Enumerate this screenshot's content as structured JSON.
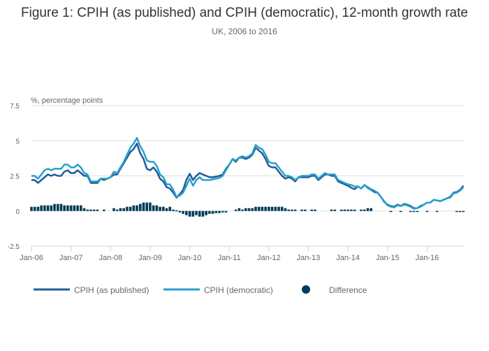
{
  "chart_data": {
    "type": "line",
    "title": "Figure 1: CPIH (as published) and CPIH (democratic), 12-month growth rate",
    "subtitle": "UK, 2006 to 2016",
    "ylabel": "%, percentage points",
    "ylim": [
      -2.5,
      7.5
    ],
    "yticks": [
      "7.5",
      "5",
      "2.5",
      "0",
      "-2.5"
    ],
    "ytick_values": [
      7.5,
      5,
      2.5,
      0,
      -2.5
    ],
    "xticks": [
      "Jan-06",
      "Jan-07",
      "Jan-08",
      "Jan-09",
      "Jan-10",
      "Jan-11",
      "Jan-12",
      "Jan-13",
      "Jan-14",
      "Jan-15",
      "Jan-16"
    ],
    "x_start": "Jan-06",
    "x_end": "Dec-16",
    "grid": true,
    "legend": "bottom",
    "colors": {
      "published": "#1f5c99",
      "democratic": "#27a0cc",
      "difference": "#003c57"
    },
    "series": [
      {
        "name": "CPIH (as published)",
        "type": "line",
        "values": [
          2.2,
          2.2,
          2.0,
          2.2,
          2.4,
          2.6,
          2.5,
          2.6,
          2.5,
          2.5,
          2.8,
          2.9,
          2.7,
          2.7,
          2.9,
          2.7,
          2.5,
          2.5,
          2.0,
          2.0,
          2.0,
          2.3,
          2.2,
          2.3,
          2.4,
          2.6,
          2.6,
          3.0,
          3.4,
          3.8,
          4.2,
          4.4,
          4.8,
          4.1,
          3.7,
          3.0,
          2.9,
          3.1,
          2.8,
          2.3,
          2.1,
          1.7,
          1.6,
          1.3,
          0.95,
          1.2,
          1.5,
          2.2,
          2.65,
          2.2,
          2.5,
          2.7,
          2.6,
          2.5,
          2.4,
          2.4,
          2.45,
          2.5,
          2.6,
          3.0,
          3.3,
          3.7,
          3.5,
          3.8,
          3.8,
          3.7,
          3.8,
          4.0,
          4.5,
          4.3,
          4.1,
          3.7,
          3.2,
          3.1,
          3.1,
          2.8,
          2.5,
          2.3,
          2.4,
          2.3,
          2.1,
          2.4,
          2.4,
          2.4,
          2.4,
          2.5,
          2.5,
          2.2,
          2.4,
          2.6,
          2.6,
          2.5,
          2.5,
          2.1,
          2.0,
          1.9,
          1.8,
          1.65,
          1.55,
          1.75,
          1.6,
          1.85,
          1.65,
          1.5,
          1.35,
          1.3,
          1.0,
          0.65,
          0.45,
          0.35,
          0.3,
          0.45,
          0.35,
          0.5,
          0.45,
          0.35,
          0.2,
          0.2,
          0.35,
          0.45,
          0.6,
          0.6,
          0.8,
          0.75,
          0.7,
          0.8,
          0.9,
          1.0,
          1.3,
          1.35,
          1.5,
          1.8
        ]
      },
      {
        "name": "CPIH (democratic)",
        "type": "line",
        "values": [
          2.5,
          2.5,
          2.3,
          2.6,
          2.9,
          3.0,
          2.9,
          3.0,
          3.0,
          3.0,
          3.3,
          3.3,
          3.1,
          3.1,
          3.3,
          3.1,
          2.7,
          2.6,
          2.1,
          2.1,
          2.1,
          2.3,
          2.3,
          2.3,
          2.4,
          2.8,
          2.7,
          3.1,
          3.5,
          4.0,
          4.5,
          4.8,
          5.2,
          4.6,
          4.2,
          3.6,
          3.5,
          3.5,
          3.2,
          2.6,
          2.4,
          1.9,
          1.9,
          1.5,
          1.0,
          1.1,
          1.3,
          1.8,
          2.3,
          1.8,
          2.2,
          2.4,
          2.2,
          2.2,
          2.2,
          2.25,
          2.3,
          2.35,
          2.5,
          2.9,
          3.3,
          3.7,
          3.6,
          3.8,
          3.9,
          3.8,
          3.9,
          4.1,
          4.7,
          4.5,
          4.4,
          4.0,
          3.5,
          3.4,
          3.4,
          3.1,
          2.8,
          2.5,
          2.5,
          2.4,
          2.2,
          2.4,
          2.5,
          2.5,
          2.5,
          2.6,
          2.6,
          2.3,
          2.5,
          2.7,
          2.6,
          2.6,
          2.6,
          2.2,
          2.1,
          2.0,
          1.9,
          1.85,
          1.75,
          1.75,
          1.6,
          1.85,
          1.7,
          1.55,
          1.45,
          1.3,
          1.0,
          0.7,
          0.4,
          0.3,
          0.25,
          0.4,
          0.35,
          0.45,
          0.4,
          0.3,
          0.15,
          0.2,
          0.3,
          0.45,
          0.6,
          0.6,
          0.8,
          0.75,
          0.7,
          0.8,
          0.9,
          0.95,
          1.25,
          1.3,
          1.45,
          1.7
        ]
      },
      {
        "name": "Difference",
        "type": "bar",
        "values": [
          0.3,
          0.3,
          0.3,
          0.4,
          0.4,
          0.4,
          0.4,
          0.5,
          0.5,
          0.5,
          0.4,
          0.4,
          0.4,
          0.4,
          0.4,
          0.4,
          0.2,
          0.1,
          0.1,
          0.1,
          0.1,
          0,
          0.1,
          0,
          0,
          0.2,
          0.1,
          0.2,
          0.2,
          0.3,
          0.3,
          0.4,
          0.4,
          0.5,
          0.6,
          0.6,
          0.6,
          0.4,
          0.4,
          0.3,
          0.3,
          0.2,
          0.3,
          0.1,
          0.05,
          -0.1,
          -0.2,
          -0.3,
          -0.4,
          -0.4,
          -0.3,
          -0.4,
          -0.4,
          -0.3,
          -0.2,
          -0.2,
          -0.15,
          -0.15,
          -0.1,
          -0.1,
          0,
          0,
          0.1,
          0.2,
          0.1,
          0.2,
          0.2,
          0.2,
          0.3,
          0.3,
          0.3,
          0.3,
          0.3,
          0.3,
          0.3,
          0.3,
          0.3,
          0.2,
          0.1,
          0.1,
          0.1,
          0,
          0.1,
          0.1,
          0,
          0.1,
          0.1,
          0,
          0,
          0,
          0,
          0.1,
          0.1,
          0,
          0.1,
          0.1,
          0.1,
          0.1,
          0.1,
          0,
          0.1,
          0.1,
          0.2,
          0.2,
          0,
          0,
          0,
          0,
          0,
          -0.05,
          0,
          0,
          -0.05,
          0,
          0,
          -0.05,
          -0.05,
          -0.05,
          0,
          0,
          -0.05,
          0,
          0,
          -0.05,
          0,
          0,
          0,
          0,
          0,
          -0.05,
          -0.05,
          -0.05
        ]
      }
    ]
  }
}
